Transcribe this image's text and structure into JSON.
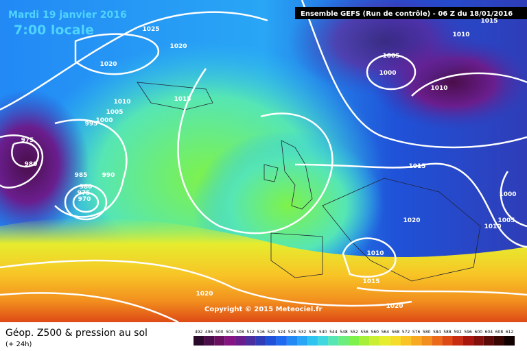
{
  "header": {
    "date": "Mardi 19 janvier 2016",
    "time": "7:00 locale",
    "run": "Ensemble GEFS  (Run de contrôle)  -  06 Z du 18/01/2016"
  },
  "isobar_labels": [
    "1025",
    "1020",
    "1020",
    "1010",
    "1005",
    "1000",
    "995",
    "975",
    "980",
    "985",
    "990",
    "980",
    "975",
    "970",
    "1015",
    "1005",
    "1000",
    "1010",
    "1015",
    "1000",
    "1005",
    "1010",
    "1020",
    "1010",
    "1015",
    "1020",
    "1020",
    "1010",
    "1015"
  ],
  "copyright": "Copyright © 2015 Meteociel.fr",
  "footer": {
    "title": "Géop. Z500 & pression au sol",
    "subtitle": "(+ 24h)"
  },
  "legend": {
    "ticks": [
      492,
      496,
      500,
      504,
      508,
      512,
      516,
      520,
      524,
      528,
      532,
      536,
      540,
      544,
      548,
      552,
      556,
      560,
      564,
      568,
      572,
      576,
      580,
      584,
      588,
      592,
      596,
      600,
      604,
      608,
      612
    ],
    "colors": [
      "#2a0a2a",
      "#4a0e4a",
      "#6a1060",
      "#861482",
      "#6a1e8e",
      "#4b2ea0",
      "#2f3db8",
      "#1f52d8",
      "#1e6af0",
      "#2289f5",
      "#29a6f5",
      "#2fc3f0",
      "#3fd8e0",
      "#56e6b4",
      "#6cee7e",
      "#7ef24a",
      "#a6f03a",
      "#c9ee32",
      "#e6ec2e",
      "#f6dc2a",
      "#f8c426",
      "#f6aa22",
      "#f28e1e",
      "#ea6a1a",
      "#de4a16",
      "#c82c12",
      "#a8160e",
      "#84100c",
      "#5c0a08",
      "#3a0604",
      "#100000"
    ]
  }
}
